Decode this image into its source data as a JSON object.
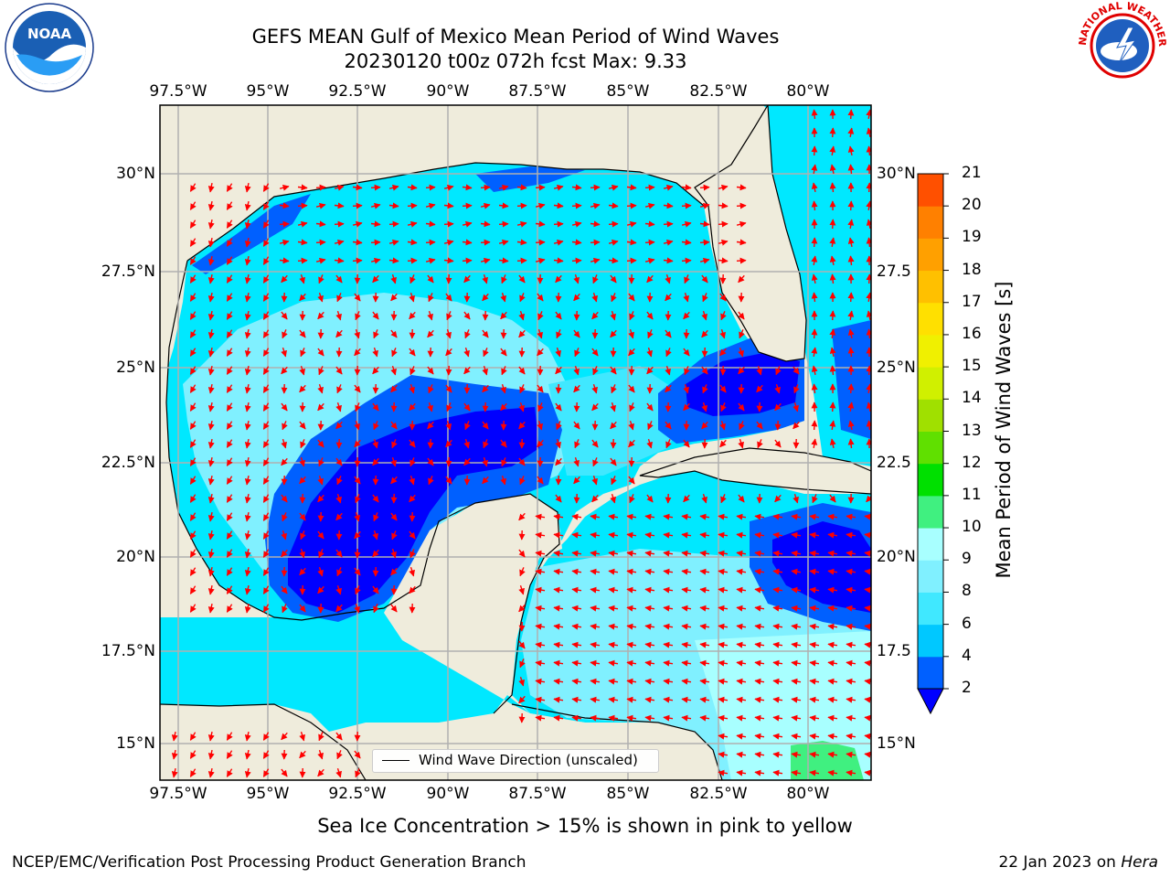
{
  "header": {
    "title_line1": "GEFS MEAN Gulf of Mexico Mean Period of Wind Waves",
    "title_line2": "20230120 t00z 072h fcst   Max: 9.33"
  },
  "map": {
    "lon_labels": [
      "97.5°W",
      "95°W",
      "92.5°W",
      "90°W",
      "87.5°W",
      "85°W",
      "82.5°W",
      "80°W"
    ],
    "lat_labels_left": [
      "30°N",
      "27.5°N",
      "25°N",
      "22.5°N",
      "20°N",
      "17.5°N",
      "15°N"
    ],
    "lat_labels_right": [
      "30°N",
      "27.5",
      "25°N",
      "22.5",
      "20°N",
      "17.5",
      "15°N"
    ],
    "legend_label": "Wind Wave Direction (unscaled)",
    "arrow_color": "#ff0000",
    "land_color": "#efecdc"
  },
  "colorbar": {
    "label": "Mean Period of Wind Waves [s]",
    "ticks": [
      "2",
      "4",
      "6",
      "8",
      "9",
      "10",
      "11",
      "12",
      "13",
      "14",
      "15",
      "16",
      "17",
      "18",
      "19",
      "20",
      "21"
    ],
    "colors": [
      "#0060ff",
      "#00c8ff",
      "#40e8ff",
      "#80f0ff",
      "#a8ffff",
      "#40f080",
      "#00e000",
      "#60e000",
      "#a0e000",
      "#d0f000",
      "#f0f000",
      "#ffe000",
      "#ffc000",
      "#ffa000",
      "#ff8000",
      "#ff5000",
      "#ff2000",
      "#ff0000"
    ],
    "extend_color": "#0000ff"
  },
  "footer": {
    "note": "Sea Ice Concentration > 15% is shown in pink to yellow",
    "credit": "NCEP/EMC/Verification Post Processing Product Generation Branch",
    "date": "22 Jan 2023 on",
    "host": "Hera"
  },
  "logos": {
    "noaa_text": "NOAA",
    "nws_text": "NATIONAL WEATHER SERVICE"
  }
}
